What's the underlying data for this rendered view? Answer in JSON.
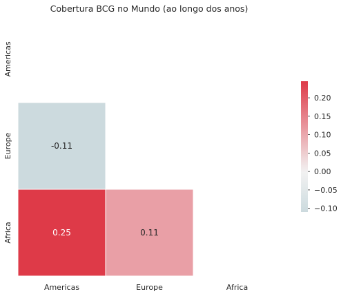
{
  "chart_data": {
    "type": "heatmap",
    "title": "Cobertura BCG no Mundo (ao longo dos anos)",
    "rows": [
      "Americas",
      "Europe",
      "Africa"
    ],
    "columns": [
      "Americas",
      "Europe",
      "Africa"
    ],
    "mask": "upper-triangle-including-diagonal",
    "cells": [
      {
        "row": "Europe",
        "col": "Americas",
        "value": -0.11,
        "label": "-0.11"
      },
      {
        "row": "Africa",
        "col": "Americas",
        "value": 0.25,
        "label": "0.25"
      },
      {
        "row": "Africa",
        "col": "Europe",
        "value": 0.11,
        "label": "0.11"
      }
    ],
    "colorbar": {
      "min": -0.11,
      "max": 0.245,
      "ticks": [
        -0.1,
        -0.05,
        0.0,
        0.05,
        0.1,
        0.15,
        0.2
      ],
      "tick_labels": [
        "−0.10",
        "−0.05",
        "0.00",
        "0.05",
        "0.10",
        "0.15",
        "0.20"
      ],
      "colormap": "diverging",
      "low_color": "#9ebdc6",
      "mid_color": "#f2f2f2",
      "high_color": "#de3a48"
    },
    "grid": false
  }
}
